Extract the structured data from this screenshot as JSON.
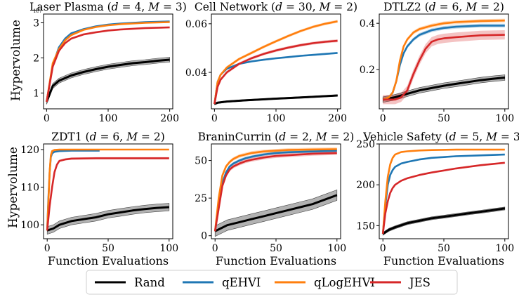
{
  "figure": {
    "ylabel_top": "Hypervolume",
    "ylabel_bottom": "Hypervolume",
    "xlabel": "Function Evaluations"
  },
  "legend": {
    "placement": "bottom-center",
    "entries": [
      {
        "label": "Rand",
        "color": "#000000"
      },
      {
        "label": "qEHVI",
        "color": "#1f77b4"
      },
      {
        "label": "qLogEHVI",
        "color": "#ff7f0e"
      },
      {
        "label": "JES",
        "color": "#d62728"
      }
    ]
  },
  "chart_data": [
    {
      "type": "line",
      "title": "Laser Plasma (d = 4, M = 3)",
      "scale_note": "1e7",
      "xlim": [
        -5,
        205
      ],
      "ylim": [
        0.55,
        3.25
      ],
      "xticks": [
        0,
        100,
        200
      ],
      "xtick_labels": [
        "0",
        "100",
        "200"
      ],
      "yticks": [
        1,
        2,
        3
      ],
      "ytick_labels": [
        "1",
        "2",
        "3"
      ],
      "xlabel": "",
      "ylabel": "Hypervolume",
      "series": [
        {
          "name": "Rand",
          "x": [
            0,
            10,
            20,
            40,
            60,
            80,
            100,
            120,
            140,
            160,
            180,
            200
          ],
          "values": [
            0.75,
            1.2,
            1.35,
            1.5,
            1.6,
            1.68,
            1.75,
            1.8,
            1.85,
            1.88,
            1.92,
            1.95
          ],
          "band": 0.07
        },
        {
          "name": "qEHVI",
          "x": [
            0,
            10,
            20,
            30,
            40,
            60,
            80,
            100,
            120,
            140,
            160,
            180,
            200
          ],
          "values": [
            0.75,
            1.8,
            2.3,
            2.55,
            2.7,
            2.82,
            2.9,
            2.95,
            2.98,
            3.0,
            3.02,
            3.03,
            3.04
          ],
          "band": 0.02
        },
        {
          "name": "qLogEHVI",
          "x": [
            0,
            10,
            20,
            30,
            40,
            60,
            80,
            100,
            120,
            140,
            160,
            180,
            200
          ],
          "values": [
            0.75,
            1.85,
            2.25,
            2.5,
            2.65,
            2.8,
            2.88,
            2.93,
            2.96,
            2.98,
            3.0,
            3.01,
            3.02
          ],
          "band": 0.02
        },
        {
          "name": "JES",
          "x": [
            0,
            10,
            20,
            30,
            40,
            60,
            80,
            100,
            120,
            140,
            160,
            180,
            200
          ],
          "values": [
            0.75,
            1.75,
            2.2,
            2.42,
            2.55,
            2.67,
            2.73,
            2.78,
            2.81,
            2.83,
            2.85,
            2.86,
            2.87
          ],
          "band": 0.03
        }
      ]
    },
    {
      "type": "line",
      "title": "Cell Network (d = 30, M = 2)",
      "xlim": [
        -5,
        205
      ],
      "ylim": [
        0.025,
        0.064
      ],
      "xticks": [
        0,
        100,
        200
      ],
      "xtick_labels": [
        "0",
        "100",
        "200"
      ],
      "yticks": [
        0.04,
        0.06
      ],
      "ytick_labels": [
        "0.04",
        "0.06"
      ],
      "xlabel": "",
      "ylabel": "",
      "series": [
        {
          "name": "Rand",
          "x": [
            0,
            5,
            20,
            50,
            100,
            150,
            200
          ],
          "values": [
            0.027,
            0.0275,
            0.028,
            0.0285,
            0.0292,
            0.0298,
            0.0305
          ],
          "band": 0.0003
        },
        {
          "name": "qEHVI",
          "x": [
            0,
            5,
            10,
            20,
            40,
            60,
            80,
            100,
            120,
            140,
            160,
            180,
            200
          ],
          "values": [
            0.027,
            0.036,
            0.039,
            0.0415,
            0.0435,
            0.0445,
            0.0452,
            0.0458,
            0.0463,
            0.0468,
            0.0472,
            0.0476,
            0.048
          ],
          "band": 0.0004
        },
        {
          "name": "qLogEHVI",
          "x": [
            0,
            5,
            10,
            20,
            40,
            60,
            80,
            100,
            120,
            140,
            160,
            180,
            200
          ],
          "values": [
            0.027,
            0.036,
            0.039,
            0.042,
            0.0455,
            0.048,
            0.0505,
            0.0528,
            0.055,
            0.057,
            0.0587,
            0.06,
            0.061
          ],
          "band": 0.0006
        },
        {
          "name": "JES",
          "x": [
            0,
            5,
            10,
            20,
            40,
            60,
            80,
            100,
            120,
            140,
            160,
            180,
            200
          ],
          "values": [
            0.027,
            0.034,
            0.037,
            0.04,
            0.0435,
            0.0458,
            0.0476,
            0.049,
            0.0502,
            0.0512,
            0.052,
            0.0526,
            0.053
          ],
          "band": 0.0006
        }
      ]
    },
    {
      "type": "line",
      "title": "DTLZ2 (d = 6, M = 2)",
      "xlim": [
        -3,
        103
      ],
      "ylim": [
        0.03,
        0.44
      ],
      "xticks": [
        0,
        50,
        100
      ],
      "xtick_labels": [
        "0",
        "50",
        "100"
      ],
      "yticks": [
        0.2,
        0.4
      ],
      "ytick_labels": [
        "0.2",
        "0.4"
      ],
      "xlabel": "",
      "ylabel": "",
      "series": [
        {
          "name": "Rand",
          "x": [
            0,
            10,
            20,
            30,
            40,
            50,
            60,
            70,
            80,
            90,
            100
          ],
          "values": [
            0.07,
            0.08,
            0.095,
            0.11,
            0.12,
            0.13,
            0.138,
            0.146,
            0.154,
            0.16,
            0.165
          ],
          "band": 0.012
        },
        {
          "name": "qEHVI",
          "x": [
            0,
            5,
            8,
            11,
            14,
            17,
            20,
            25,
            30,
            40,
            50,
            60,
            80,
            100
          ],
          "values": [
            0.07,
            0.08,
            0.1,
            0.15,
            0.22,
            0.27,
            0.3,
            0.33,
            0.35,
            0.37,
            0.38,
            0.385,
            0.39,
            0.39
          ],
          "band": 0.008
        },
        {
          "name": "qLogEHVI",
          "x": [
            0,
            5,
            8,
            11,
            14,
            17,
            20,
            25,
            30,
            40,
            50,
            60,
            80,
            100
          ],
          "values": [
            0.07,
            0.08,
            0.1,
            0.15,
            0.24,
            0.3,
            0.33,
            0.36,
            0.375,
            0.39,
            0.4,
            0.405,
            0.41,
            0.412
          ],
          "band": 0.008
        },
        {
          "name": "JES",
          "x": [
            0,
            10,
            15,
            20,
            25,
            30,
            35,
            40,
            45,
            50,
            60,
            80,
            100
          ],
          "values": [
            0.07,
            0.07,
            0.08,
            0.11,
            0.18,
            0.24,
            0.29,
            0.32,
            0.33,
            0.335,
            0.34,
            0.348,
            0.35
          ],
          "band": 0.02
        }
      ]
    },
    {
      "type": "line",
      "title": "ZDT1 (d = 6, M = 2)",
      "xlim": [
        -3,
        103
      ],
      "ylim": [
        96.3,
        121.5
      ],
      "xticks": [
        0,
        50,
        100
      ],
      "xtick_labels": [
        "0",
        "50",
        "100"
      ],
      "yticks": [
        100,
        110,
        120
      ],
      "ytick_labels": [
        "100",
        "110",
        "120"
      ],
      "xlabel": "Function Evaluations",
      "ylabel": "Hypervolume",
      "series": [
        {
          "name": "Rand",
          "x": [
            0,
            5,
            10,
            20,
            30,
            40,
            50,
            60,
            70,
            80,
            90,
            100
          ],
          "values": [
            98.5,
            99.0,
            100.0,
            101.0,
            101.5,
            102.0,
            102.8,
            103.3,
            103.8,
            104.2,
            104.5,
            104.7
          ],
          "band": 1.0
        },
        {
          "name": "qEHVI",
          "x": [
            0,
            1,
            2,
            3,
            4,
            6,
            10,
            20,
            30,
            43
          ],
          "values": [
            98.5,
            107.0,
            114.0,
            118.0,
            119.0,
            119.4,
            119.6,
            119.7,
            119.7,
            119.7
          ],
          "band": 0.15
        },
        {
          "name": "qLogEHVI",
          "x": [
            0,
            1,
            2,
            3,
            4,
            6,
            10,
            30,
            60,
            100
          ],
          "values": [
            98.5,
            106.0,
            114.0,
            118.5,
            119.6,
            119.9,
            120.0,
            120.0,
            120.0,
            120.0
          ],
          "band": 0.1
        },
        {
          "name": "JES",
          "x": [
            0,
            2,
            4,
            6,
            8,
            10,
            15,
            20,
            40,
            60,
            80,
            100
          ],
          "values": [
            98.5,
            105.0,
            110.0,
            114.0,
            116.0,
            117.0,
            117.4,
            117.6,
            117.7,
            117.7,
            117.7,
            117.7
          ],
          "band": 0.3
        }
      ]
    },
    {
      "type": "line",
      "title": "BraninCurrin (d = 2, M = 2)",
      "xlim": [
        -3,
        103
      ],
      "ylim": [
        -2,
        61
      ],
      "xticks": [
        0,
        50,
        100
      ],
      "xtick_labels": [
        "0",
        "50",
        "100"
      ],
      "yticks": [
        0,
        25,
        50
      ],
      "ytick_labels": [
        "0",
        "25",
        "50"
      ],
      "xlabel": "Function Evaluations",
      "ylabel": "",
      "series": [
        {
          "name": "Rand",
          "x": [
            0,
            5,
            10,
            20,
            30,
            40,
            50,
            60,
            70,
            80,
            90,
            100
          ],
          "values": [
            3,
            5,
            7,
            9,
            11,
            13,
            15,
            17,
            19,
            21,
            24,
            27
          ],
          "band": 3.5
        },
        {
          "name": "qEHVI",
          "x": [
            0,
            3,
            6,
            9,
            12,
            15,
            20,
            25,
            30,
            40,
            50,
            60,
            80,
            100
          ],
          "values": [
            3,
            20,
            35,
            42,
            46,
            48,
            50,
            51.5,
            52.5,
            54,
            55,
            55.5,
            56,
            56.5
          ],
          "band": 1.0
        },
        {
          "name": "qLogEHVI",
          "x": [
            0,
            3,
            6,
            9,
            12,
            15,
            20,
            25,
            30,
            40,
            50,
            60,
            80,
            100
          ],
          "values": [
            3,
            25,
            40,
            46,
            49,
            51,
            53,
            54,
            55,
            56,
            56.5,
            57,
            57.3,
            57.5
          ],
          "band": 1.2
        },
        {
          "name": "JES",
          "x": [
            0,
            3,
            6,
            9,
            12,
            15,
            20,
            25,
            30,
            40,
            50,
            60,
            80,
            100
          ],
          "values": [
            3,
            18,
            33,
            40,
            44,
            46,
            48,
            49.5,
            50.5,
            52,
            53,
            53.5,
            54.5,
            55
          ],
          "band": 1.3
        }
      ]
    },
    {
      "type": "line",
      "title": "Vehicle Safety (d = 5, M = 3)",
      "xlim": [
        -3,
        103
      ],
      "ylim": [
        134,
        250
      ],
      "xticks": [
        0,
        50,
        100
      ],
      "xtick_labels": [
        "0",
        "50",
        "100"
      ],
      "yticks": [
        150,
        200,
        250
      ],
      "ytick_labels": [
        "150",
        "200",
        "250"
      ],
      "xlabel": "Function Evaluations",
      "ylabel": "",
      "series": [
        {
          "name": "Rand",
          "x": [
            0,
            5,
            10,
            20,
            30,
            40,
            50,
            60,
            70,
            80,
            90,
            100
          ],
          "values": [
            140,
            145,
            148,
            153,
            156,
            159,
            161,
            163,
            165,
            167,
            169,
            171
          ],
          "band": 1.8
        },
        {
          "name": "qEHVI",
          "x": [
            0,
            2,
            4,
            6,
            8,
            10,
            15,
            20,
            30,
            40,
            60,
            80,
            100
          ],
          "values": [
            140,
            175,
            200,
            212,
            218,
            222,
            226,
            228,
            231,
            233,
            235,
            236,
            237
          ],
          "band": 1.0
        },
        {
          "name": "qLogEHVI",
          "x": [
            0,
            2,
            4,
            6,
            8,
            10,
            15,
            20,
            30,
            40,
            60,
            80,
            100
          ],
          "values": [
            140,
            180,
            210,
            225,
            233,
            237,
            240,
            241,
            242,
            242.5,
            243,
            243,
            243
          ],
          "band": 0.8
        },
        {
          "name": "JES",
          "x": [
            0,
            2,
            4,
            6,
            8,
            10,
            15,
            20,
            30,
            40,
            60,
            80,
            100
          ],
          "values": [
            140,
            165,
            180,
            190,
            196,
            200,
            205,
            208,
            212,
            215,
            220,
            224,
            227
          ],
          "band": 1.0
        }
      ]
    }
  ]
}
